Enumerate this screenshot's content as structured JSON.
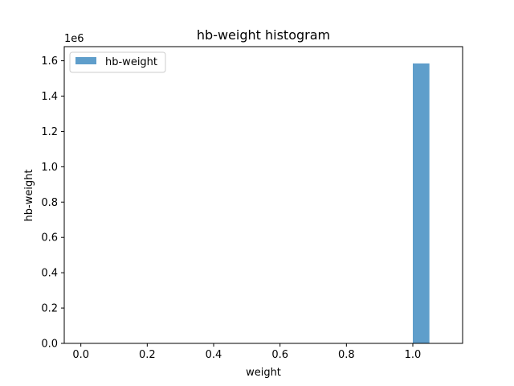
{
  "chart_data": {
    "type": "bar",
    "title": "hb-weight histogram",
    "xlabel": "weight",
    "ylabel": "hb-weight",
    "y_offset_label": "1e6",
    "xlim": [
      -0.05,
      1.15
    ],
    "ylim": [
      0,
      1.68
    ],
    "x_ticks": [
      0.0,
      0.2,
      0.4,
      0.6,
      0.8,
      1.0
    ],
    "x_tick_labels": [
      "0.0",
      "0.2",
      "0.4",
      "0.6",
      "0.8",
      "1.0"
    ],
    "y_ticks": [
      0.0,
      0.2,
      0.4,
      0.6,
      0.8,
      1.0,
      1.2,
      1.4,
      1.6
    ],
    "y_tick_labels": [
      "0.0",
      "0.2",
      "0.4",
      "0.6",
      "0.8",
      "1.0",
      "1.2",
      "1.4",
      "1.6"
    ],
    "bars": [
      {
        "x_start": 1.0,
        "x_end": 1.05,
        "value": 1.585
      }
    ],
    "series": [
      {
        "name": "hb-weight",
        "color": "#5f9ecb"
      }
    ],
    "legend": {
      "placement": "top-left"
    },
    "grid": false
  }
}
